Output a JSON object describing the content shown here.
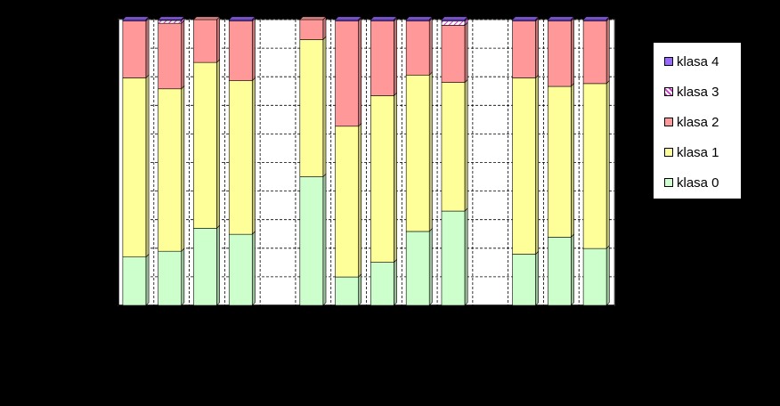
{
  "chart_data": {
    "type": "bar",
    "stacked": true,
    "normalized": true,
    "ylim": [
      0,
      100
    ],
    "grid": true,
    "legend_position": "right",
    "categories": [
      "",
      "",
      "",
      "",
      "",
      "",
      "",
      "",
      "",
      "",
      "",
      "",
      "",
      ""
    ],
    "series": [
      {
        "name": "klasa 0",
        "color": "#ccffcc",
        "values": [
          17,
          19,
          27,
          25,
          0,
          45,
          10,
          15,
          26,
          33,
          0,
          18,
          24,
          20
        ]
      },
      {
        "name": "klasa 1",
        "color": "#ffff99",
        "values": [
          63,
          57,
          58,
          54,
          0,
          48,
          53,
          58,
          55,
          45,
          0,
          62,
          53,
          58
        ]
      },
      {
        "name": "klasa 2",
        "color": "#ff9999",
        "values": [
          20,
          23,
          15,
          21,
          0,
          7,
          37,
          26,
          19,
          20,
          0,
          20,
          23,
          22
        ]
      },
      {
        "name": "klasa 3",
        "color": "#cc66ff",
        "pattern": "hatch",
        "values": [
          0,
          1,
          0,
          0,
          0,
          0,
          0,
          0,
          0,
          1.5,
          0,
          0,
          0,
          0
        ]
      },
      {
        "name": "klasa 4",
        "color": "#9966ff",
        "values": [
          0.5,
          0.3,
          0,
          0.5,
          0,
          0,
          0.5,
          0.5,
          0.5,
          0.5,
          0,
          0.5,
          0.5,
          0.5
        ]
      }
    ]
  },
  "legend": {
    "items": [
      {
        "key": "klasa 4",
        "label": "klasa 4"
      },
      {
        "key": "klasa 3",
        "label": "klasa 3"
      },
      {
        "key": "klasa 2",
        "label": "klasa 2"
      },
      {
        "key": "klasa 1",
        "label": "klasa 1"
      },
      {
        "key": "klasa 0",
        "label": "klasa 0"
      }
    ]
  }
}
